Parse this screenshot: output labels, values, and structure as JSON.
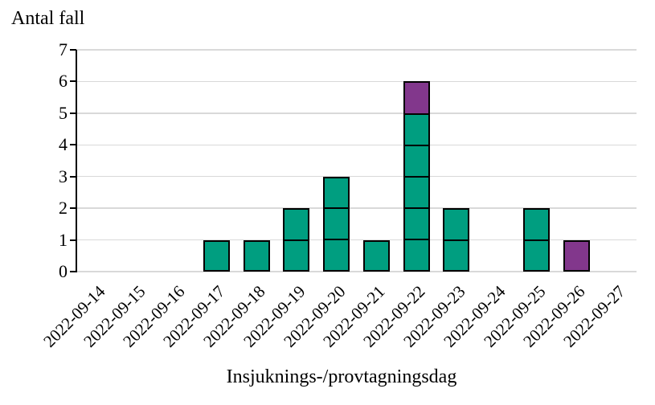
{
  "chart": {
    "y_axis_title": "Antal fall",
    "x_axis_title": "Insjuknings-/provtagningsdag"
  },
  "chart_data": {
    "type": "bar",
    "stacked": true,
    "unit_boxes": true,
    "title": "",
    "xlabel": "Insjuknings-/provtagningsdag",
    "ylabel": "Antal fall",
    "ylim": [
      0,
      7
    ],
    "y_ticks": [
      0,
      1,
      2,
      3,
      4,
      5,
      6,
      7
    ],
    "grid": "horizontal",
    "legend": "none",
    "categories": [
      "2022-09-14",
      "2022-09-15",
      "2022-09-16",
      "2022-09-17",
      "2022-09-18",
      "2022-09-19",
      "2022-09-20",
      "2022-09-21",
      "2022-09-22",
      "2022-09-23",
      "2022-09-24",
      "2022-09-25",
      "2022-09-26",
      "2022-09-27"
    ],
    "series": [
      {
        "name": "cases-green",
        "color": "#009E80",
        "values": [
          0,
          0,
          0,
          1,
          1,
          2,
          3,
          1,
          5,
          2,
          0,
          2,
          0,
          0
        ]
      },
      {
        "name": "cases-purple",
        "color": "#82378C",
        "values": [
          0,
          0,
          0,
          0,
          0,
          0,
          0,
          0,
          1,
          0,
          0,
          0,
          1,
          0
        ]
      }
    ],
    "totals": [
      0,
      0,
      0,
      1,
      1,
      2,
      3,
      1,
      6,
      2,
      0,
      2,
      1,
      0
    ]
  },
  "colors": {
    "background": "#ffffff",
    "gridline": "#d9d9d9",
    "axis": "#000000",
    "box_border": "#000000",
    "green": "#009E80",
    "purple": "#82378C"
  }
}
